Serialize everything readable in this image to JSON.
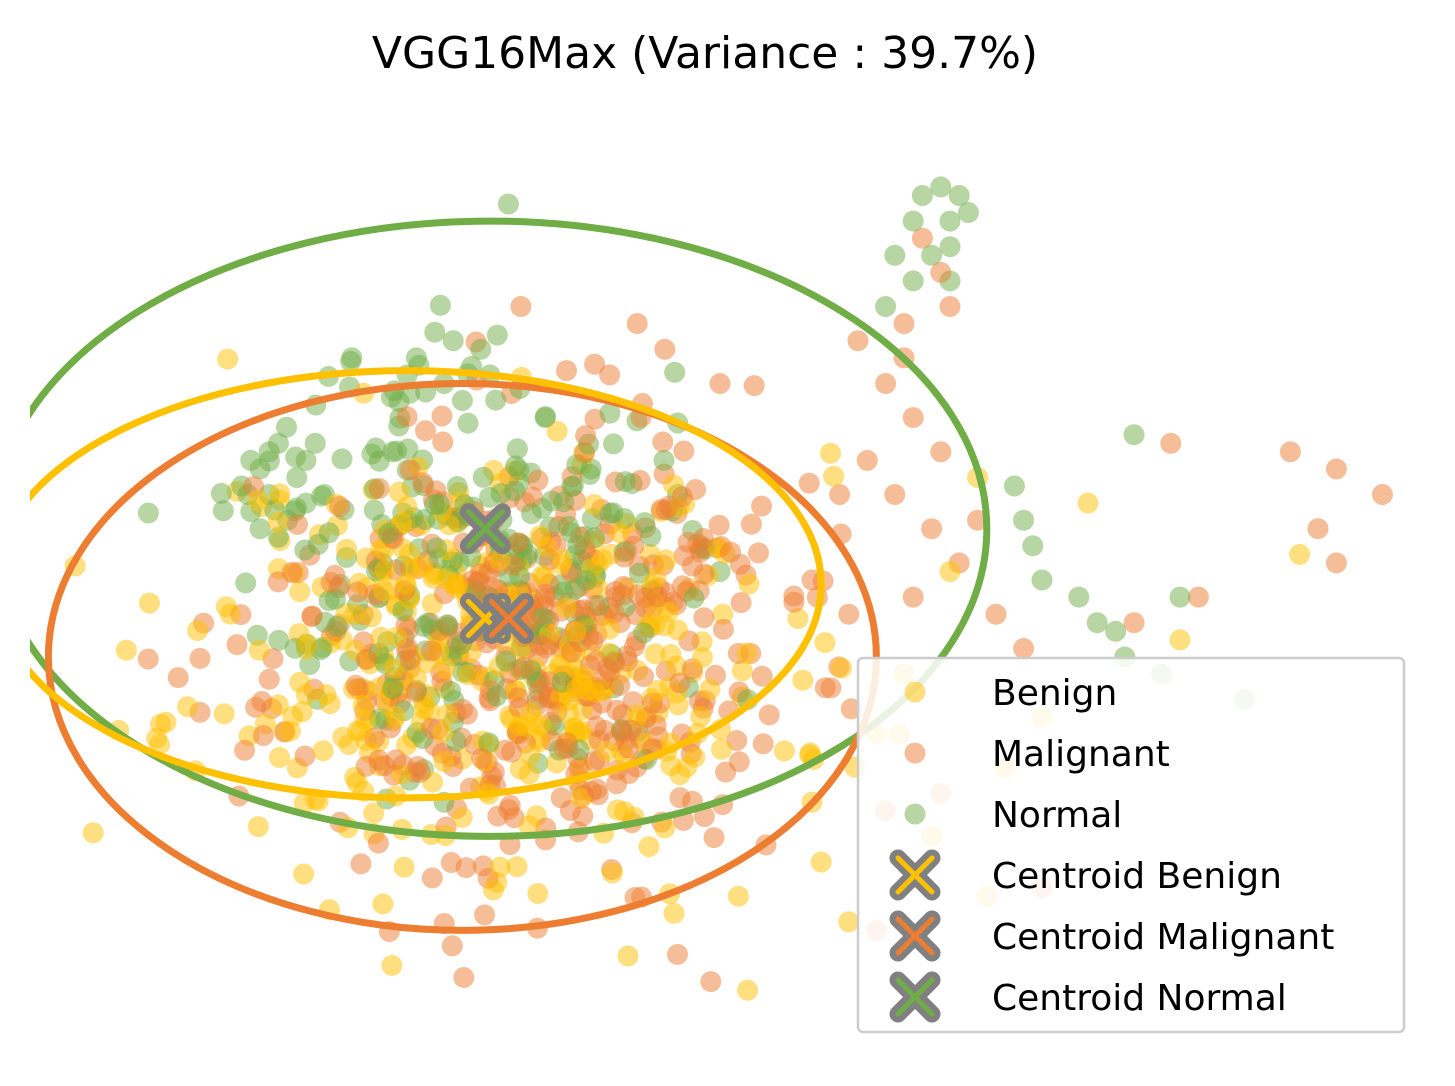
{
  "chart_data": {
    "type": "scatter",
    "title": "VGG16Max (Variance : 39.7%)",
    "axes_visible": false,
    "grid": false,
    "legend_position": "lower-right",
    "xlim": [
      -6,
      9
    ],
    "ylim": [
      -5.5,
      5.5
    ],
    "colors": {
      "benign": "#FFC000",
      "malignant": "#ED7D31",
      "normal": "#70AD47",
      "centroid_edge": "#808080"
    },
    "series": [
      {
        "name": "Benign",
        "color": "#FFC000",
        "opacity": 0.5,
        "cluster": {
          "center": [
            -1.0,
            -0.9
          ],
          "spread": [
            1.6,
            1.2
          ],
          "count": 380,
          "seed": 11
        },
        "points": [
          [
            4.3,
            1.2
          ],
          [
            5.5,
            0.9
          ],
          [
            7.8,
            0.3
          ],
          [
            6.5,
            -0.7
          ],
          [
            4.0,
            0.1
          ],
          [
            3.5,
            -1.1
          ],
          [
            2.2,
            -2.0
          ],
          [
            2.6,
            -3.3
          ],
          [
            1.7,
            -3.7
          ],
          [
            3.8,
            -3.0
          ],
          [
            4.6,
            -2.2
          ],
          [
            5.0,
            -1.6
          ],
          [
            0.5,
            -4.4
          ],
          [
            1.8,
            -4.8
          ],
          [
            2.9,
            -4.0
          ],
          [
            1.0,
            -3.9
          ],
          [
            2.5,
            -2.6
          ],
          [
            3.2,
            -1.8
          ],
          [
            4.4,
            -3.7
          ],
          [
            0.9,
            -2.9
          ]
        ]
      },
      {
        "name": "Malignant",
        "color": "#ED7D31",
        "opacity": 0.5,
        "cluster": {
          "center": [
            -0.6,
            -0.8
          ],
          "spread": [
            1.4,
            1.3
          ],
          "count": 460,
          "seed": 23
        },
        "points": [
          [
            3.7,
            4.0
          ],
          [
            3.9,
            3.6
          ],
          [
            4.0,
            3.2
          ],
          [
            3.5,
            3.0
          ],
          [
            3.0,
            2.8
          ],
          [
            3.3,
            2.3
          ],
          [
            3.6,
            1.9
          ],
          [
            3.9,
            1.5
          ],
          [
            3.1,
            1.4
          ],
          [
            2.8,
            1.0
          ],
          [
            3.4,
            1.0
          ],
          [
            3.8,
            0.6
          ],
          [
            4.1,
            0.2
          ],
          [
            2.5,
            0.0
          ],
          [
            2.9,
            -0.4
          ],
          [
            3.6,
            -0.2
          ],
          [
            1.5,
            2.3
          ],
          [
            0.9,
            2.7
          ],
          [
            0.3,
            2.4
          ],
          [
            0.6,
            3.0
          ],
          [
            6.4,
            1.6
          ],
          [
            7.7,
            1.5
          ],
          [
            8.2,
            1.3
          ],
          [
            8.7,
            1.0
          ],
          [
            8.0,
            0.6
          ],
          [
            8.2,
            0.2
          ],
          [
            6.0,
            -0.5
          ],
          [
            6.7,
            -0.2
          ],
          [
            4.5,
            -0.4
          ],
          [
            4.8,
            -0.8
          ],
          [
            3.3,
            -2.7
          ],
          [
            2.0,
            -3.1
          ],
          [
            3.2,
            -4.1
          ],
          [
            1.4,
            -4.7
          ],
          [
            5.0,
            -3.6
          ],
          [
            3.9,
            -2.5
          ],
          [
            3.5,
            2.6
          ],
          [
            4.3,
            0.7
          ]
        ]
      },
      {
        "name": "Normal",
        "color": "#70AD47",
        "opacity": 0.5,
        "cluster": {
          "center": [
            -1.3,
            0.3
          ],
          "spread": [
            1.1,
            1.2
          ],
          "count": 240,
          "seed": 37
        },
        "points": [
          [
            -3.3,
            1.6
          ],
          [
            -3.5,
            1.3
          ],
          [
            -3.1,
            1.2
          ],
          [
            -3.4,
            1.0
          ],
          [
            -3.0,
            0.9
          ],
          [
            -3.6,
            0.8
          ],
          [
            -3.2,
            0.7
          ],
          [
            -3.4,
            1.5
          ],
          [
            -3.0,
            1.4
          ],
          [
            -3.7,
            1.1
          ],
          [
            -3.5,
            0.6
          ],
          [
            -2.8,
            1.0
          ],
          [
            -3.3,
            0.5
          ],
          [
            -2.9,
            1.6
          ],
          [
            -3.6,
            1.4
          ],
          [
            -1.6,
            2.9
          ],
          [
            -1.2,
            2.5
          ],
          [
            -1.8,
            2.6
          ],
          [
            -1.4,
            2.8
          ],
          [
            -1.0,
            2.4
          ],
          [
            -1.7,
            2.2
          ],
          [
            -1.3,
            2.1
          ],
          [
            -1.9,
            2.4
          ],
          [
            -1.1,
            2.7
          ],
          [
            -1.5,
            2.3
          ],
          [
            -0.8,
            4.4
          ],
          [
            -0.4,
            1.9
          ],
          [
            0.1,
            1.3
          ],
          [
            3.7,
            4.5
          ],
          [
            3.9,
            4.6
          ],
          [
            4.1,
            4.5
          ],
          [
            3.6,
            4.2
          ],
          [
            4.0,
            4.2
          ],
          [
            4.2,
            4.3
          ],
          [
            3.4,
            3.8
          ],
          [
            3.8,
            3.8
          ],
          [
            4.0,
            3.9
          ],
          [
            3.3,
            3.2
          ],
          [
            3.6,
            3.5
          ],
          [
            4.0,
            3.5
          ],
          [
            6.0,
            1.7
          ],
          [
            4.7,
            1.1
          ],
          [
            4.8,
            0.7
          ],
          [
            4.9,
            0.4
          ],
          [
            5.0,
            0.0
          ],
          [
            5.4,
            -0.2
          ],
          [
            5.6,
            -0.5
          ],
          [
            5.8,
            -0.6
          ],
          [
            6.5,
            -0.2
          ],
          [
            7.2,
            -1.4
          ],
          [
            6.3,
            -1.1
          ],
          [
            5.9,
            -0.9
          ],
          [
            1.8,
            -1.4
          ],
          [
            1.5,
            0.1
          ],
          [
            0.7,
            -2.1
          ],
          [
            -0.3,
            -1.7
          ],
          [
            -1.5,
            -2.6
          ]
        ]
      }
    ],
    "centroids": [
      {
        "name": "Centroid Benign",
        "color": "#FFC000",
        "x": -1.05,
        "y": -0.45
      },
      {
        "name": "Centroid Malignant",
        "color": "#ED7D31",
        "x": -0.8,
        "y": -0.45
      },
      {
        "name": "Centroid Normal",
        "color": "#70AD47",
        "x": -1.05,
        "y": 0.6
      }
    ],
    "ellipses": [
      {
        "name": "Normal",
        "color": "#70AD47",
        "cx": -1.0,
        "cy": 0.6,
        "rx": 5.4,
        "ry": 3.6
      },
      {
        "name": "Malignant",
        "color": "#ED7D31",
        "cx": -1.3,
        "cy": -0.9,
        "rx": 4.5,
        "ry": 3.2
      },
      {
        "name": "Benign",
        "color": "#FFC000",
        "cx": -1.9,
        "cy": -0.05,
        "rx": 4.5,
        "ry": 2.5
      }
    ],
    "legend": [
      "Benign",
      "Malignant",
      "Normal",
      "Centroid Benign",
      "Centroid Malignant",
      "Centroid Normal"
    ]
  }
}
